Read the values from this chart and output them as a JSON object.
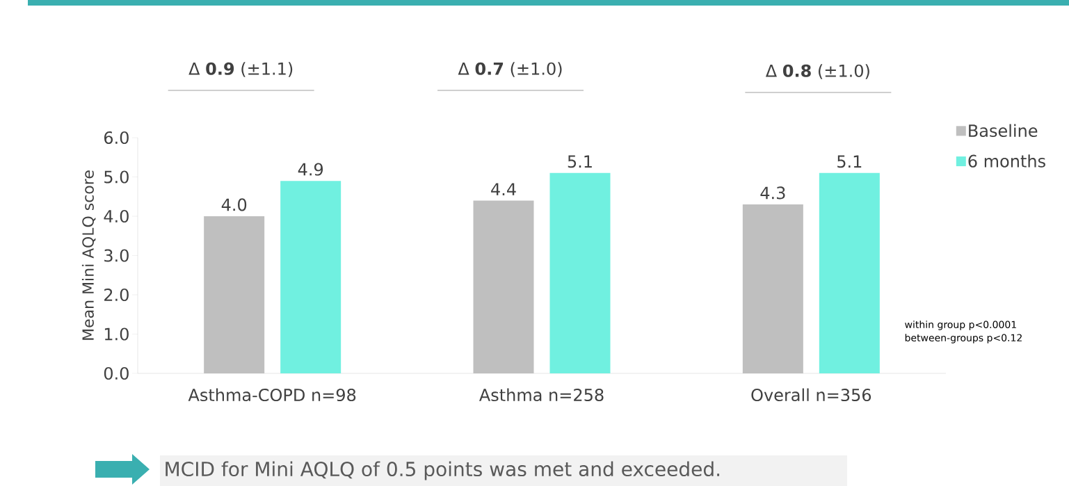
{
  "chart_data": {
    "type": "bar",
    "ylabel": "Mean Mini AQLQ score",
    "categories": [
      "Asthma-COPD n=98",
      "Asthma n=258",
      "Overall n=356"
    ],
    "series": [
      {
        "name": "Baseline",
        "color": "#bfbfbf",
        "values": [
          4.0,
          4.4,
          4.3
        ],
        "value_labels": [
          "4.0",
          "4.4",
          "4.3"
        ]
      },
      {
        "name": "6 months",
        "color": "#70f0e0",
        "values": [
          4.9,
          5.1,
          5.1
        ],
        "value_labels": [
          "4.9",
          "5.1",
          "5.1"
        ]
      }
    ],
    "ylim": [
      0,
      6
    ],
    "yticks": [
      {
        "value": 0,
        "label": "0.0"
      },
      {
        "value": 1,
        "label": "1.0"
      },
      {
        "value": 2,
        "label": "2.0"
      },
      {
        "value": 3,
        "label": "3.0"
      },
      {
        "value": 4,
        "label": "4.0"
      },
      {
        "value": 5,
        "label": "5.0"
      },
      {
        "value": 6,
        "label": "6.0"
      }
    ],
    "legend": "top right",
    "grid": false,
    "annotations": [
      "Δ **0.9** (±1.1)",
      "Δ **0.7** (±1.0)",
      "Δ **0.8** (±1.0)",
      "within group p<0.0001",
      "between-groups p<0.12",
      "MCID for Mini AQLQ of 0.5 points was met and exceeded."
    ]
  }
}
